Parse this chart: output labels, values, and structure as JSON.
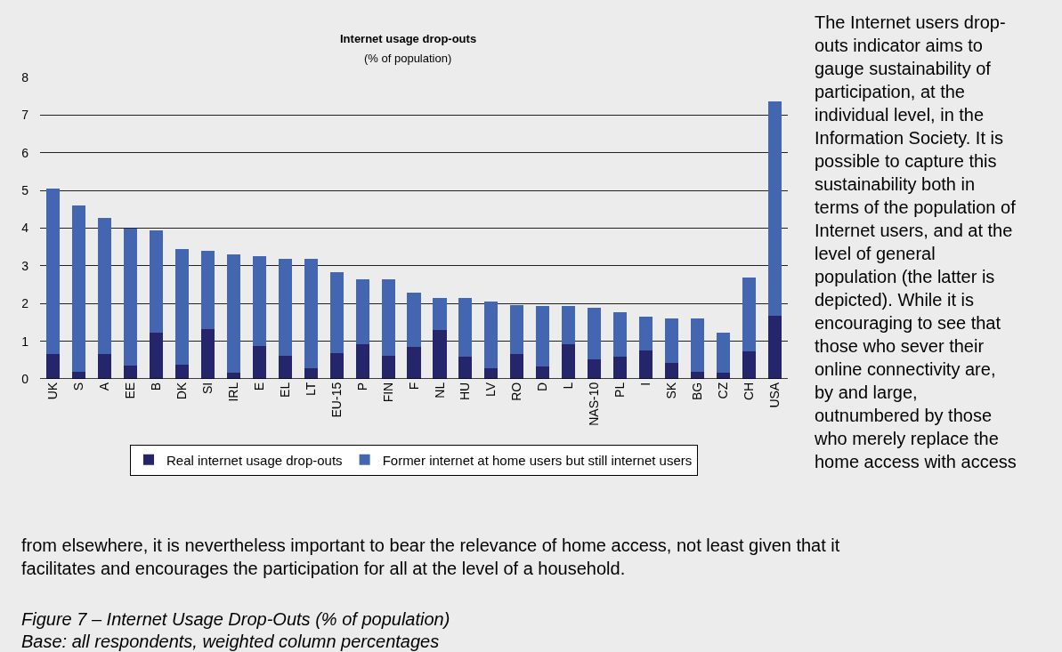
{
  "chart_data": {
    "type": "bar",
    "title": "Internet usage drop-outs",
    "subtitle": "(% of population)",
    "categories": [
      "UK",
      "S",
      "A",
      "EE",
      "B",
      "DK",
      "SI",
      "IRL",
      "E",
      "EL",
      "LT",
      "EU-15",
      "P",
      "FIN",
      "F",
      "NL",
      "HU",
      "LV",
      "RO",
      "D",
      "L",
      "NAS-10",
      "PL",
      "I",
      "SK",
      "BG",
      "CZ",
      "CH",
      "USA"
    ],
    "stacked": true,
    "series": [
      {
        "name": "Real internet usage drop-outs",
        "color": "#25256b",
        "values": [
          0.67,
          0.2,
          0.67,
          0.36,
          1.23,
          0.38,
          1.32,
          0.17,
          0.88,
          0.62,
          0.29,
          0.69,
          0.93,
          0.62,
          0.86,
          1.3,
          0.6,
          0.29,
          0.67,
          0.34,
          0.93,
          0.53,
          0.6,
          0.76,
          0.43,
          0.19,
          0.17,
          0.72,
          1.68
        ]
      },
      {
        "name": "Former internet at home users but still internet users",
        "color": "#4466b0",
        "values": [
          4.38,
          4.4,
          3.6,
          3.64,
          2.7,
          3.06,
          2.07,
          3.13,
          2.37,
          2.56,
          2.89,
          2.15,
          1.72,
          2.03,
          1.44,
          0.85,
          1.55,
          1.77,
          1.29,
          1.6,
          1.01,
          1.36,
          1.17,
          0.9,
          1.18,
          1.42,
          1.06,
          1.96,
          5.69
        ]
      }
    ],
    "ylim": [
      0,
      8
    ],
    "yticks": [
      0,
      1,
      2,
      3,
      4,
      5,
      6,
      7,
      8
    ],
    "grid": "y",
    "legend": "bottom",
    "annotations": [
      "The Internet users drop-\nouts indicator aims to\ngauge sustainability of\nparticipation, at the\nindividual level, in the\nInformation Society. It is\npossible to capture this\nsustainability both in\nterms of the population of\nInternet users, and at the\nlevel of general\npopulation (the latter is\ndepicted). While it is\nencouraging to see that\nthose who sever their\nonline connectivity are,\nby and large,\noutnumbered by those\nwho merely replace the\nhome access with access",
      "from elsewhere, it is nevertheless important to bear the relevance of home access, not least given that it\nfacilitates and encourages the participation for all at the level of a household.",
      "Figure 7 – Internet Usage Drop-Outs (% of population)",
      "Base: all respondents, weighted column percentages"
    ]
  }
}
